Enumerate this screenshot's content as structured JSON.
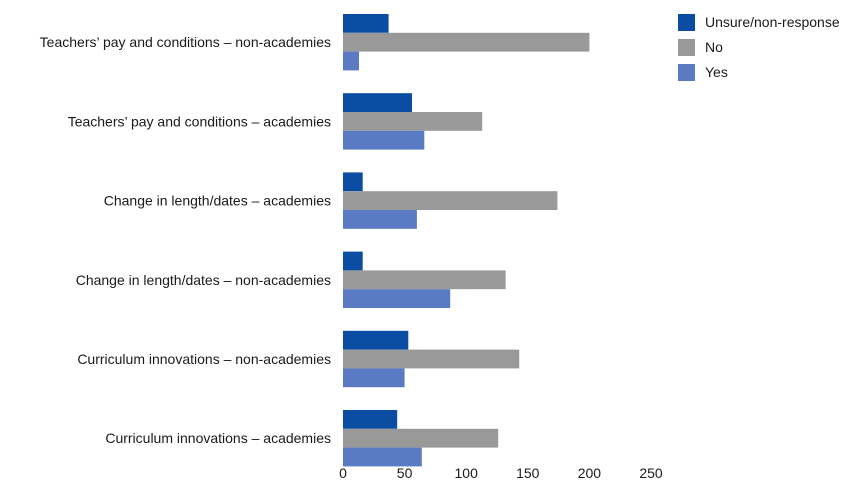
{
  "chart_data": {
    "type": "bar",
    "orientation": "horizontal",
    "categories": [
      "Teachers’ pay and conditions – non-academies",
      "Teachers’ pay and conditions – academies",
      "Change in length/dates – academies",
      "Change in length/dates – non-academies",
      "Curriculum innovations – non-academies",
      "Curriculum innovations – academies"
    ],
    "series": [
      {
        "name": "Unsure/non-response",
        "color": "#0A4DA2",
        "values": [
          37,
          56,
          16,
          16,
          53,
          44
        ]
      },
      {
        "name": "No",
        "color": "#999999",
        "values": [
          200,
          113,
          174,
          132,
          143,
          126
        ]
      },
      {
        "name": "Yes",
        "color": "#5A7BC4",
        "values": [
          13,
          66,
          60,
          87,
          50,
          64
        ]
      }
    ],
    "xaxis": {
      "ticks": [
        "0",
        "50",
        "100",
        "150",
        "200",
        "250"
      ],
      "range": [
        0,
        250
      ]
    },
    "grid": false,
    "legend": {
      "position": "top-right"
    },
    "title": "",
    "xlabel": "",
    "ylabel": ""
  }
}
